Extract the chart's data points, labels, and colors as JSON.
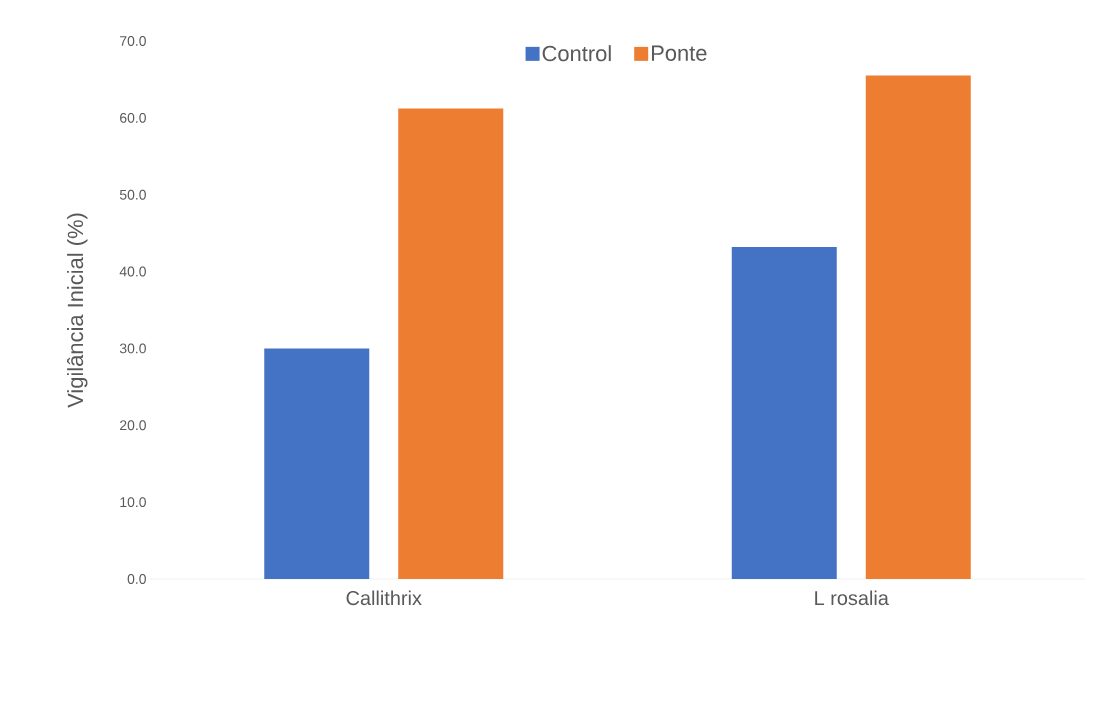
{
  "chart_data": {
    "type": "bar",
    "ylabel": "Vigilância Inicial (%)",
    "categories": [
      "Callithrix",
      "L rosalia"
    ],
    "series": [
      {
        "name": "Control",
        "color": "#4472c4",
        "values": [
          30.0,
          43.2
        ]
      },
      {
        "name": "Ponte",
        "color": "#ed7d31",
        "values": [
          61.2,
          65.5
        ]
      }
    ],
    "ylim": [
      0,
      70
    ],
    "yticks": [
      {
        "value": 0,
        "label": "0.0"
      },
      {
        "value": 10,
        "label": "10.0"
      },
      {
        "value": 20,
        "label": "20.0"
      },
      {
        "value": 30,
        "label": "30.0"
      },
      {
        "value": 40,
        "label": "40.0"
      },
      {
        "value": 50,
        "label": "50.0"
      },
      {
        "value": 60,
        "label": "60.0"
      },
      {
        "value": 70,
        "label": "70.0"
      }
    ],
    "grid": false,
    "legend": "top"
  }
}
